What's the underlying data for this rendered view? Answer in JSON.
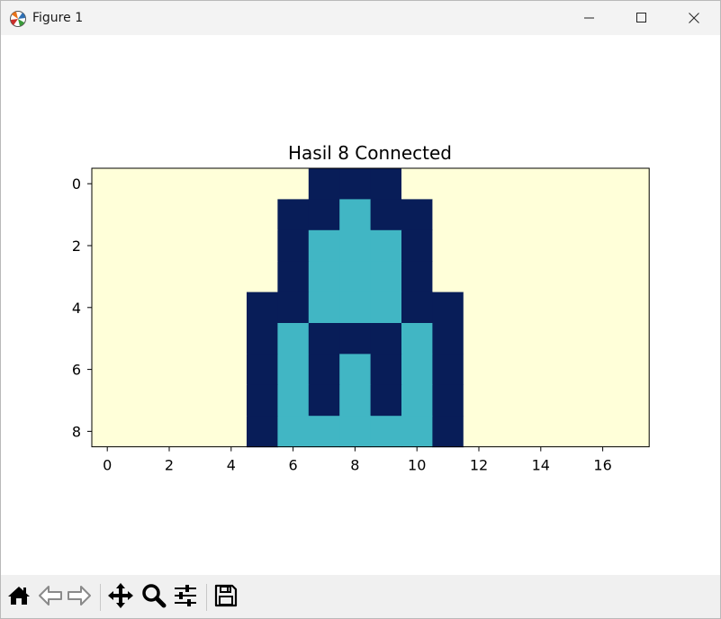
{
  "window": {
    "title": "Figure 1",
    "icons": {
      "app": "matplotlib-icon",
      "minimize": "minimize-icon",
      "maximize": "maximize-icon",
      "close": "close-icon"
    }
  },
  "toolbar": {
    "buttons": [
      {
        "name": "home",
        "icon": "home-icon"
      },
      {
        "name": "back",
        "icon": "back-arrow-icon"
      },
      {
        "name": "forward",
        "icon": "forward-arrow-icon"
      },
      {
        "name": "pan",
        "icon": "move-icon"
      },
      {
        "name": "zoom",
        "icon": "magnifier-icon"
      },
      {
        "name": "configure-subplots",
        "icon": "sliders-icon"
      },
      {
        "name": "save",
        "icon": "floppy-disk-icon"
      }
    ]
  },
  "chart_data": {
    "type": "heatmap",
    "title": "Hasil 8 Connected",
    "colormap": "YlGnBu",
    "colors": {
      "0": "#ffffd9",
      "1": "#41b6c4",
      "2": "#081d58"
    },
    "xticks": [
      0,
      2,
      4,
      6,
      8,
      10,
      12,
      14,
      16
    ],
    "yticks": [
      0,
      2,
      4,
      6,
      8
    ],
    "xlim": [
      -0.5,
      17.5
    ],
    "ylim": [
      8.5,
      -0.5
    ],
    "grid": false,
    "values": [
      [
        0,
        0,
        0,
        0,
        0,
        0,
        0,
        2,
        2,
        2,
        0,
        0,
        0,
        0,
        0,
        0,
        0,
        0
      ],
      [
        0,
        0,
        0,
        0,
        0,
        0,
        2,
        2,
        1,
        2,
        2,
        0,
        0,
        0,
        0,
        0,
        0,
        0
      ],
      [
        0,
        0,
        0,
        0,
        0,
        0,
        2,
        1,
        1,
        1,
        2,
        0,
        0,
        0,
        0,
        0,
        0,
        0
      ],
      [
        0,
        0,
        0,
        0,
        0,
        0,
        2,
        1,
        1,
        1,
        2,
        0,
        0,
        0,
        0,
        0,
        0,
        0
      ],
      [
        0,
        0,
        0,
        0,
        0,
        2,
        2,
        1,
        1,
        1,
        2,
        2,
        0,
        0,
        0,
        0,
        0,
        0
      ],
      [
        0,
        0,
        0,
        0,
        0,
        2,
        1,
        2,
        2,
        2,
        1,
        2,
        0,
        0,
        0,
        0,
        0,
        0
      ],
      [
        0,
        0,
        0,
        0,
        0,
        2,
        1,
        2,
        1,
        2,
        1,
        2,
        0,
        0,
        0,
        0,
        0,
        0
      ],
      [
        0,
        0,
        0,
        0,
        0,
        2,
        1,
        2,
        1,
        2,
        1,
        2,
        0,
        0,
        0,
        0,
        0,
        0
      ],
      [
        0,
        0,
        0,
        0,
        0,
        2,
        1,
        1,
        1,
        1,
        1,
        2,
        0,
        0,
        0,
        0,
        0,
        0
      ]
    ]
  }
}
